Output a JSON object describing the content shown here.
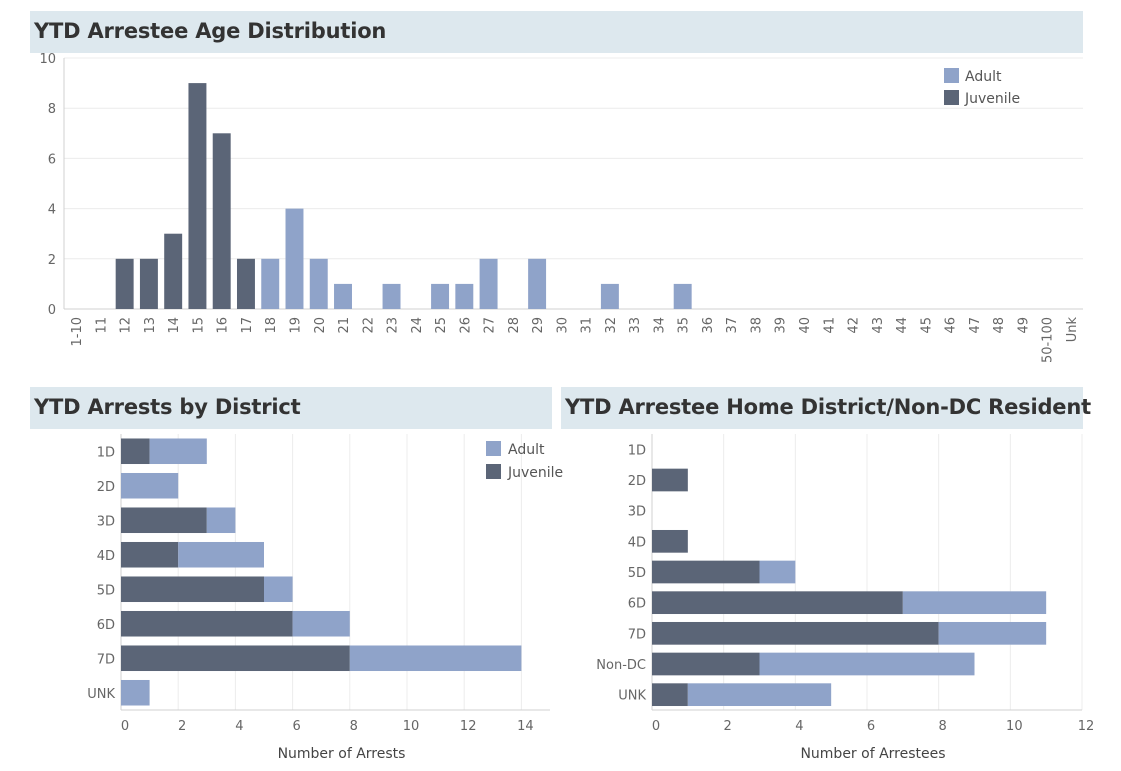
{
  "colors": {
    "adult": "#8fa3c9",
    "juvenile": "#5b6577",
    "title_band": "#dde8ee",
    "grid": "#ececec",
    "axis": "#d0d0d0",
    "text": "#666666"
  },
  "chart_data": [
    {
      "type": "bar",
      "title": "YTD Arrestee Age Distribution",
      "stacked": true,
      "categories": [
        "1-10",
        "11",
        "12",
        "13",
        "14",
        "15",
        "16",
        "17",
        "18",
        "19",
        "20",
        "21",
        "22",
        "23",
        "24",
        "25",
        "26",
        "27",
        "28",
        "29",
        "30",
        "31",
        "32",
        "33",
        "34",
        "35",
        "36",
        "37",
        "38",
        "39",
        "40",
        "41",
        "42",
        "43",
        "44",
        "45",
        "46",
        "47",
        "48",
        "49",
        "50-100",
        "Unk"
      ],
      "series": [
        {
          "name": "Adult",
          "values": [
            0,
            0,
            0,
            0,
            0,
            0,
            0,
            0,
            2,
            4,
            2,
            1,
            0,
            1,
            0,
            1,
            1,
            2,
            0,
            2,
            0,
            0,
            1,
            0,
            0,
            1,
            0,
            0,
            0,
            0,
            0,
            0,
            0,
            0,
            0,
            0,
            0,
            0,
            0,
            0,
            0,
            0
          ]
        },
        {
          "name": "Juvenile",
          "values": [
            0,
            0,
            2,
            2,
            3,
            9,
            7,
            2,
            0,
            0,
            0,
            0,
            0,
            0,
            0,
            0,
            0,
            0,
            0,
            0,
            0,
            0,
            0,
            0,
            0,
            0,
            0,
            0,
            0,
            0,
            0,
            0,
            0,
            0,
            0,
            0,
            0,
            0,
            0,
            0,
            0,
            0
          ]
        }
      ],
      "ylim": [
        0,
        10
      ],
      "yticks": [
        0,
        2,
        4,
        6,
        8,
        10
      ],
      "legend": "top-right",
      "xlabel": "",
      "ylabel": ""
    },
    {
      "type": "bar",
      "orientation": "horizontal",
      "stacked": true,
      "title": "YTD Arrests by District",
      "categories": [
        "1D",
        "2D",
        "3D",
        "4D",
        "5D",
        "6D",
        "7D",
        "UNK"
      ],
      "series": [
        {
          "name": "Juvenile",
          "values": [
            1,
            0,
            3,
            2,
            5,
            6,
            8,
            0
          ]
        },
        {
          "name": "Adult",
          "values": [
            2,
            2,
            1,
            3,
            1,
            2,
            6,
            1
          ]
        }
      ],
      "xlim": [
        0,
        15
      ],
      "xticks": [
        0,
        2,
        4,
        6,
        8,
        10,
        12,
        14
      ],
      "xlabel": "Number of Arrests",
      "legend": "top-right",
      "legend_items": [
        "Adult",
        "Juvenile"
      ]
    },
    {
      "type": "bar",
      "orientation": "horizontal",
      "stacked": true,
      "title": "YTD Arrestee Home District/Non-DC Resident",
      "categories": [
        "1D",
        "2D",
        "3D",
        "4D",
        "5D",
        "6D",
        "7D",
        "Non-DC",
        "UNK"
      ],
      "series": [
        {
          "name": "Juvenile",
          "values": [
            0,
            1,
            0,
            1,
            3,
            7,
            8,
            3,
            1
          ]
        },
        {
          "name": "Adult",
          "values": [
            0,
            0,
            0,
            0,
            1,
            4,
            3,
            6,
            4
          ]
        }
      ],
      "xlim": [
        0,
        12
      ],
      "xticks": [
        0,
        2,
        4,
        6,
        8,
        10,
        12
      ],
      "xlabel": "Number of Arrestees"
    }
  ]
}
